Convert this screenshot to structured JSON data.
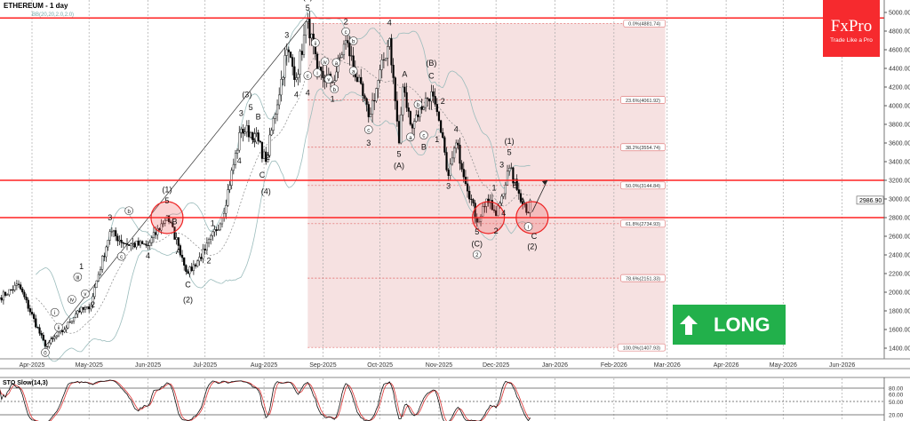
{
  "header": {
    "title": "ETHEREUM - 1 day",
    "indicator": "BB(20,20,2.0,2.0)"
  },
  "logo": {
    "brand": "FxPro",
    "tagline": "Trade Like a Pro",
    "color": "#f62a2e"
  },
  "signal": {
    "label": "LONG",
    "icon": "arrow-up-icon",
    "color": "#22b04b"
  },
  "chart_data": {
    "type": "candlestick",
    "symbol": "ETHEREUM",
    "timeframe": "1 day",
    "ylim": [
      1200,
      5150
    ],
    "yticks": [
      1400,
      1600,
      1800,
      2000,
      2200,
      2400,
      2600,
      2800,
      3000,
      3200,
      3400,
      3600,
      3800,
      4000,
      4200,
      4400,
      4600,
      4800,
      5000
    ],
    "current_price": "2986.90",
    "xticks": [
      [
        "2025-04-01",
        "Apr-2025"
      ],
      [
        "2025-05-01",
        "May-2025"
      ],
      [
        "2025-06-01",
        "Jun-2025"
      ],
      [
        "2025-07-01",
        "Jul-2025"
      ],
      [
        "2025-08-01",
        "Aug-2025"
      ],
      [
        "2025-09-01",
        "Sep-2025"
      ],
      [
        "2025-10-01",
        "Oct-2025"
      ],
      [
        "2025-11-01",
        "Nov-2025"
      ],
      [
        "2025-12-01",
        "Dec-2025"
      ],
      [
        "2026-01-01",
        "Jan-2026"
      ],
      [
        "2026-02-01",
        "Feb-2026"
      ],
      [
        "2026-03-01",
        "Mar-2026"
      ],
      [
        "2026-04-01",
        "Apr-2026"
      ],
      [
        "2026-05-01",
        "May-2026"
      ],
      [
        "2026-06-01",
        "Jun-2026"
      ]
    ],
    "swing_points": [
      [
        "2025-03-15",
        1940
      ],
      [
        "2025-03-25",
        2080
      ],
      [
        "2025-04-08",
        1420
      ],
      [
        "2025-04-18",
        1600
      ],
      [
        "2025-04-25",
        1800
      ],
      [
        "2025-05-01",
        1820
      ],
      [
        "2025-05-12",
        2650
      ],
      [
        "2025-05-20",
        2520
      ],
      [
        "2025-06-01",
        2500
      ],
      [
        "2025-06-11",
        2820
      ],
      [
        "2025-06-17",
        2500
      ],
      [
        "2025-06-22",
        2200
      ],
      [
        "2025-07-01",
        2450
      ],
      [
        "2025-07-10",
        2800
      ],
      [
        "2025-07-20",
        3750
      ],
      [
        "2025-07-27",
        3700
      ],
      [
        "2025-08-02",
        3400
      ],
      [
        "2025-08-13",
        4600
      ],
      [
        "2025-08-18",
        4300
      ],
      [
        "2025-08-24",
        4930
      ],
      [
        "2025-08-29",
        4350
      ],
      [
        "2025-09-06",
        4250
      ],
      [
        "2025-09-13",
        4700
      ],
      [
        "2025-09-25",
        3880
      ],
      [
        "2025-10-06",
        4720
      ],
      [
        "2025-10-11",
        3600
      ],
      [
        "2025-10-13",
        4200
      ],
      [
        "2025-10-17",
        3800
      ],
      [
        "2025-10-28",
        4150
      ],
      [
        "2025-11-04",
        3500
      ],
      [
        "2025-11-06",
        3250
      ],
      [
        "2025-11-10",
        3600
      ],
      [
        "2025-11-21",
        2750
      ],
      [
        "2025-11-26",
        3000
      ],
      [
        "2025-12-01",
        2820
      ],
      [
        "2025-12-08",
        3330
      ],
      [
        "2025-12-12",
        3100
      ],
      [
        "2025-12-18",
        2850
      ],
      [
        "2025-12-19",
        2987
      ]
    ],
    "horizontal_levels": [
      4940,
      3200,
      2800
    ],
    "fibonacci": {
      "start": "2025-08-24",
      "end": "2026-02-28",
      "levels": [
        {
          "label": "0.0%(4881.74)",
          "price": 4881.74
        },
        {
          "label": "23.6%(4061.92)",
          "price": 4061.92
        },
        {
          "label": "38.2%(3554.74)",
          "price": 3554.74
        },
        {
          "label": "50.0%(3144.84)",
          "price": 3144.84
        },
        {
          "label": "61.8%(2734.93)",
          "price": 2734.93
        },
        {
          "label": "78.6%(2151.33)",
          "price": 2151.33
        },
        {
          "label": "100.0%(1407.93)",
          "price": 1407.93
        }
      ]
    },
    "circles": [
      [
        "2025-06-11",
        2800
      ],
      [
        "2025-11-27",
        2800
      ],
      [
        "2025-12-20",
        2800
      ]
    ],
    "arrow": [
      [
        "2025-12-20",
        2860
      ],
      [
        "2025-12-28",
        3200
      ]
    ],
    "wave_labels": [
      [
        "2025-04-08",
        1330,
        "0",
        true
      ],
      [
        "2025-04-15",
        1600,
        "ii",
        true
      ],
      [
        "2025-04-22",
        1900,
        "iv",
        true
      ],
      [
        "2025-04-25",
        2140,
        "iii",
        true
      ],
      [
        "2025-04-13",
        1760,
        "i",
        true
      ],
      [
        "2025-04-29",
        1960,
        "v",
        true
      ],
      [
        "2025-05-03",
        1850,
        "2",
        false
      ],
      [
        "2025-04-27",
        2200,
        "1",
        false
      ],
      [
        "2025-05-12",
        2780,
        "3",
        false
      ],
      [
        "2025-05-18",
        2360,
        "c",
        true
      ],
      [
        "2025-05-22",
        2850,
        "b",
        true
      ],
      [
        "2025-06-01",
        2370,
        "4",
        false
      ],
      [
        "2025-06-11",
        2960,
        "5",
        false
      ],
      [
        "2025-06-11",
        3060,
        "(1)",
        false
      ],
      [
        "2025-06-15",
        2740,
        "B",
        false
      ],
      [
        "2025-06-17",
        2420,
        "A",
        false
      ],
      [
        "2025-06-22",
        2060,
        "C",
        false
      ],
      [
        "2025-06-22",
        1900,
        "(2)",
        false
      ],
      [
        "2025-07-03",
        2320,
        "2",
        false
      ],
      [
        "2025-07-05",
        2720,
        "1",
        false
      ],
      [
        "2025-07-20",
        3900,
        "3",
        false
      ],
      [
        "2025-07-25",
        3960,
        "5",
        false
      ],
      [
        "2025-07-23",
        4100,
        "(3)",
        false
      ],
      [
        "2025-07-29",
        3860,
        "B",
        false
      ],
      [
        "2025-07-27",
        3600,
        "A",
        false
      ],
      [
        "2025-07-31",
        3240,
        "C",
        false
      ],
      [
        "2025-08-03",
        3430,
        "2",
        false
      ],
      [
        "2025-08-02",
        3060,
        "(4)",
        false
      ],
      [
        "2025-07-19",
        3390,
        "4",
        false
      ],
      [
        "2025-08-13",
        4740,
        "3",
        false
      ],
      [
        "2025-08-18",
        4100,
        "4",
        false
      ],
      [
        "2025-08-24",
        5030,
        "5",
        false
      ],
      [
        "2025-08-24",
        5130,
        "(5)",
        false
      ],
      [
        "2025-08-28",
        4650,
        "ii",
        true
      ],
      [
        "2025-08-24",
        4300,
        "c",
        true
      ],
      [
        "2025-08-24",
        4120,
        "4",
        false
      ],
      [
        "2025-08-29",
        4330,
        "i",
        true
      ],
      [
        "2025-09-02",
        4450,
        "iv",
        true
      ],
      [
        "2025-09-04",
        4260,
        "v",
        true
      ],
      [
        "2025-09-07",
        4250,
        "b",
        true
      ],
      [
        "2025-09-06",
        4130,
        "1",
        false
      ],
      [
        "2025-09-08",
        4440,
        "a",
        true
      ],
      [
        "2025-09-13",
        4770,
        "c",
        true
      ],
      [
        "2025-09-13",
        4880,
        "2",
        false
      ],
      [
        "2025-09-17",
        4690,
        "b",
        true
      ],
      [
        "2025-09-17",
        4350,
        "a",
        true
      ],
      [
        "2025-09-25",
        3720,
        "c",
        true
      ],
      [
        "2025-09-25",
        3580,
        "3",
        false
      ],
      [
        "2025-10-06",
        4870,
        "4",
        false
      ],
      [
        "2025-10-11",
        3460,
        "5",
        false
      ],
      [
        "2025-10-11",
        3340,
        "(A)",
        false
      ],
      [
        "2025-10-14",
        4320,
        "A",
        false
      ],
      [
        "2025-10-17",
        3640,
        "a",
        true
      ],
      [
        "2025-10-21",
        3990,
        "b",
        true
      ],
      [
        "2025-10-24",
        3660,
        "c",
        true
      ],
      [
        "2025-10-24",
        3540,
        "B",
        false
      ],
      [
        "2025-10-28",
        4300,
        "C",
        false
      ],
      [
        "2025-10-28",
        4440,
        "(B)",
        false
      ],
      [
        "2025-10-31",
        3620,
        "1",
        false
      ],
      [
        "2025-11-03",
        4030,
        "2",
        false
      ],
      [
        "2025-11-06",
        3120,
        "3",
        false
      ],
      [
        "2025-11-10",
        3730,
        "4",
        false
      ],
      [
        "2025-11-21",
        2630,
        "5",
        false
      ],
      [
        "2025-11-21",
        2500,
        "(C)",
        false
      ],
      [
        "2025-11-21",
        2380,
        "2",
        true
      ],
      [
        "2025-11-30",
        3100,
        "1",
        false
      ],
      [
        "2025-12-01",
        2640,
        "2",
        false
      ],
      [
        "2025-12-04",
        3350,
        "3",
        false
      ],
      [
        "2025-12-05",
        2830,
        "4",
        false
      ],
      [
        "2025-12-08",
        3480,
        "5",
        false
      ],
      [
        "2025-12-08",
        3580,
        "(1)",
        false
      ],
      [
        "2025-12-11",
        3130,
        "B",
        false
      ],
      [
        "2025-12-15",
        2960,
        "A",
        false
      ],
      [
        "2025-12-18",
        2680,
        "i",
        true
      ],
      [
        "2025-12-21",
        2640,
        "C",
        false
      ],
      [
        "2025-12-20",
        2490,
        "(2)",
        false
      ]
    ],
    "oscillator": {
      "name": "STO Slow(14,3)",
      "levels": [
        "80.00",
        "60.00",
        "50.00",
        "20.00"
      ]
    }
  }
}
